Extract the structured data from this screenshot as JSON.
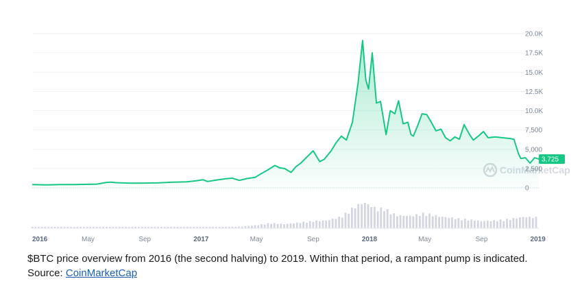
{
  "chart_data": {
    "type": "area",
    "title": "",
    "xlabel": "",
    "ylabel": "",
    "ylim": [
      0,
      20000
    ],
    "xlim": [
      "2016-01-01",
      "2019-01-03"
    ],
    "y_ticks": [
      {
        "value": 0,
        "label": "0"
      },
      {
        "value": 2500,
        "label": "2,500"
      },
      {
        "value": 5000,
        "label": "5,000"
      },
      {
        "value": 7500,
        "label": "7,500"
      },
      {
        "value": 10000,
        "label": "10.0K"
      },
      {
        "value": 12500,
        "label": "12.5K"
      },
      {
        "value": 15000,
        "label": "15.0K"
      },
      {
        "value": 17500,
        "label": "17.5K"
      },
      {
        "value": 20000,
        "label": "20.0K"
      }
    ],
    "x_ticks": [
      {
        "date": "2016-01-01",
        "label": "2016",
        "major": true
      },
      {
        "date": "2016-05-01",
        "label": "May",
        "major": false
      },
      {
        "date": "2016-09-01",
        "label": "Sep",
        "major": false
      },
      {
        "date": "2017-01-01",
        "label": "2017",
        "major": true
      },
      {
        "date": "2017-05-01",
        "label": "May",
        "major": false
      },
      {
        "date": "2017-09-01",
        "label": "Sep",
        "major": false
      },
      {
        "date": "2018-01-01",
        "label": "2018",
        "major": true
      },
      {
        "date": "2018-05-01",
        "label": "May",
        "major": false
      },
      {
        "date": "2018-09-01",
        "label": "Sep",
        "major": false
      },
      {
        "date": "2019-01-01",
        "label": "2019",
        "major": true
      }
    ],
    "grid": true,
    "last_value_label": "3,725",
    "watermark": "CoinMarketCap",
    "colors": {
      "line": "#16c784",
      "volume": "#d3d6e0",
      "grid": "#eff2f5",
      "badge": "#16c784"
    },
    "price": [
      [
        "2016-01-01",
        430
      ],
      [
        "2016-02-01",
        380
      ],
      [
        "2016-03-01",
        420
      ],
      [
        "2016-04-01",
        430
      ],
      [
        "2016-05-01",
        450
      ],
      [
        "2016-05-20",
        480
      ],
      [
        "2016-06-10",
        700
      ],
      [
        "2016-06-20",
        730
      ],
      [
        "2016-07-01",
        670
      ],
      [
        "2016-08-01",
        600
      ],
      [
        "2016-09-01",
        610
      ],
      [
        "2016-10-01",
        650
      ],
      [
        "2016-11-01",
        730
      ],
      [
        "2016-12-01",
        780
      ],
      [
        "2016-12-20",
        900
      ],
      [
        "2017-01-05",
        1050
      ],
      [
        "2017-01-15",
        820
      ],
      [
        "2017-02-01",
        990
      ],
      [
        "2017-02-25",
        1190
      ],
      [
        "2017-03-10",
        1250
      ],
      [
        "2017-03-25",
        960
      ],
      [
        "2017-04-10",
        1200
      ],
      [
        "2017-04-28",
        1350
      ],
      [
        "2017-05-10",
        1800
      ],
      [
        "2017-05-25",
        2300
      ],
      [
        "2017-06-10",
        2900
      ],
      [
        "2017-06-20",
        2600
      ],
      [
        "2017-07-01",
        2500
      ],
      [
        "2017-07-15",
        2000
      ],
      [
        "2017-07-25",
        2700
      ],
      [
        "2017-08-05",
        3200
      ],
      [
        "2017-08-20",
        4100
      ],
      [
        "2017-09-01",
        4800
      ],
      [
        "2017-09-15",
        3400
      ],
      [
        "2017-09-25",
        3700
      ],
      [
        "2017-10-10",
        4800
      ],
      [
        "2017-10-20",
        5800
      ],
      [
        "2017-11-01",
        6700
      ],
      [
        "2017-11-12",
        6200
      ],
      [
        "2017-11-25",
        8500
      ],
      [
        "2017-12-07",
        13500
      ],
      [
        "2017-12-17",
        19100
      ],
      [
        "2017-12-24",
        14000
      ],
      [
        "2017-12-30",
        12800
      ],
      [
        "2018-01-07",
        17500
      ],
      [
        "2018-01-16",
        11000
      ],
      [
        "2018-01-25",
        11200
      ],
      [
        "2018-02-06",
        6900
      ],
      [
        "2018-02-15",
        10000
      ],
      [
        "2018-02-25",
        9600
      ],
      [
        "2018-03-05",
        11300
      ],
      [
        "2018-03-15",
        8300
      ],
      [
        "2018-03-25",
        8500
      ],
      [
        "2018-04-01",
        6900
      ],
      [
        "2018-04-06",
        6700
      ],
      [
        "2018-04-15",
        8000
      ],
      [
        "2018-04-25",
        9600
      ],
      [
        "2018-05-05",
        9500
      ],
      [
        "2018-05-15",
        8500
      ],
      [
        "2018-05-25",
        7400
      ],
      [
        "2018-06-05",
        7600
      ],
      [
        "2018-06-15",
        6500
      ],
      [
        "2018-06-25",
        6100
      ],
      [
        "2018-07-05",
        6600
      ],
      [
        "2018-07-15",
        6300
      ],
      [
        "2018-07-25",
        8200
      ],
      [
        "2018-08-05",
        7000
      ],
      [
        "2018-08-14",
        6200
      ],
      [
        "2018-08-25",
        6700
      ],
      [
        "2018-09-05",
        7300
      ],
      [
        "2018-09-15",
        6500
      ],
      [
        "2018-10-01",
        6600
      ],
      [
        "2018-10-15",
        6500
      ],
      [
        "2018-11-01",
        6400
      ],
      [
        "2018-11-10",
        6300
      ],
      [
        "2018-11-20",
        4400
      ],
      [
        "2018-11-25",
        3800
      ],
      [
        "2018-12-05",
        3900
      ],
      [
        "2018-12-15",
        3200
      ],
      [
        "2018-12-25",
        3900
      ],
      [
        "2019-01-03",
        3725
      ]
    ],
    "volume_scale": "relative",
    "volume": [
      [
        "2016-01-01",
        2
      ],
      [
        "2016-04-01",
        2
      ],
      [
        "2016-07-01",
        3
      ],
      [
        "2016-10-01",
        3
      ],
      [
        "2017-01-01",
        4
      ],
      [
        "2017-03-01",
        5
      ],
      [
        "2017-04-01",
        7
      ],
      [
        "2017-05-01",
        12
      ],
      [
        "2017-06-01",
        20
      ],
      [
        "2017-07-01",
        16
      ],
      [
        "2017-08-01",
        22
      ],
      [
        "2017-09-01",
        28
      ],
      [
        "2017-10-01",
        30
      ],
      [
        "2017-11-01",
        45
      ],
      [
        "2017-12-01",
        85
      ],
      [
        "2017-12-20",
        100
      ],
      [
        "2018-01-01",
        90
      ],
      [
        "2018-01-20",
        72
      ],
      [
        "2018-02-01",
        80
      ],
      [
        "2018-02-15",
        62
      ],
      [
        "2018-03-01",
        50
      ],
      [
        "2018-04-01",
        48
      ],
      [
        "2018-05-01",
        58
      ],
      [
        "2018-06-01",
        46
      ],
      [
        "2018-07-01",
        40
      ],
      [
        "2018-08-01",
        34
      ],
      [
        "2018-09-01",
        28
      ],
      [
        "2018-10-01",
        30
      ],
      [
        "2018-11-01",
        36
      ],
      [
        "2018-12-01",
        44
      ],
      [
        "2019-01-03",
        42
      ]
    ]
  },
  "caption": {
    "text": "$BTC price overview from 2016 (the second halving) to 2019. Within that period, a rampant pump is indicated. Source: ",
    "link_text": "CoinMarketCap"
  }
}
